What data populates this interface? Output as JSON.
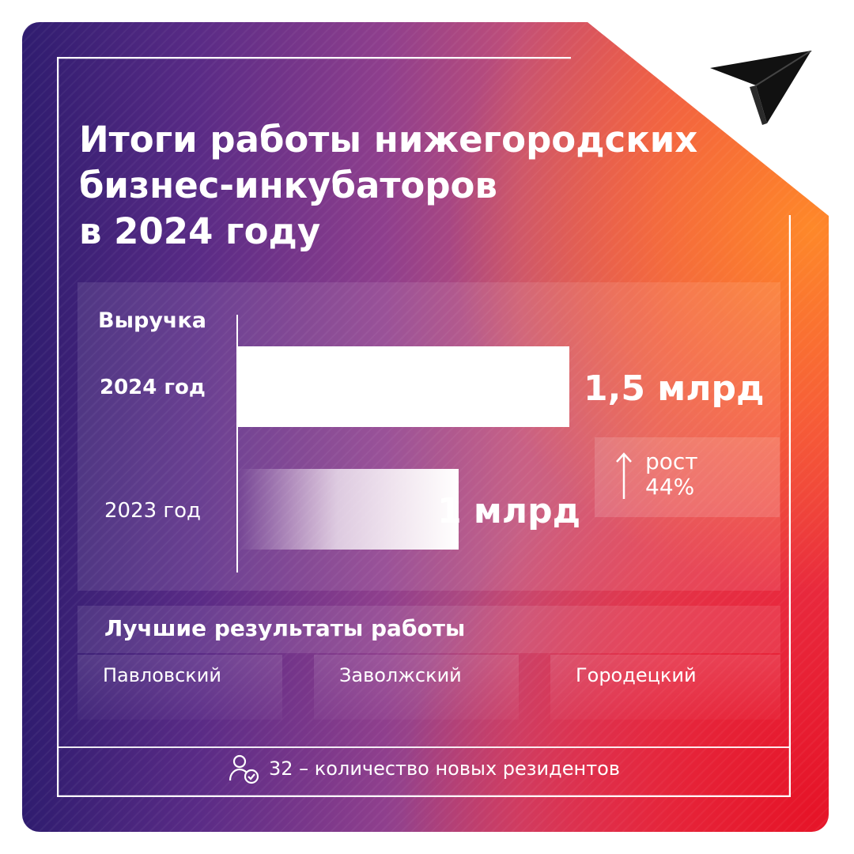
{
  "title": {
    "line1": "Итоги работы нижегородских",
    "line2": "бизнес-инкубаторов",
    "line3": "в 2024 году"
  },
  "chart_data": {
    "type": "bar",
    "title": "Выручка",
    "categories": [
      "2024 год",
      "2023 год"
    ],
    "values": [
      1.5,
      1.0
    ],
    "value_labels": [
      "1,5 млрд",
      "1 млрд"
    ],
    "unit": "млрд",
    "xlim": [
      0,
      1.5
    ],
    "orientation": "horizontal",
    "grid": false
  },
  "growth": {
    "word": "рост",
    "percent": "44%"
  },
  "best": {
    "title": "Лучшие результаты работы",
    "items": [
      "Павловский",
      "Заволжский",
      "Городецкий"
    ]
  },
  "footer": {
    "text": "32 – количество новых резидентов"
  },
  "icons": {
    "logo": "paper-plane-logo",
    "growth": "arrow-up-icon",
    "residents": "user-check-icon"
  },
  "colors": {
    "gradient_left": "#2f1c6f",
    "gradient_mid": "#c24f78",
    "gradient_right": "#ef3b3b",
    "accent_orange": "#f08a3a",
    "text": "#ffffff"
  }
}
